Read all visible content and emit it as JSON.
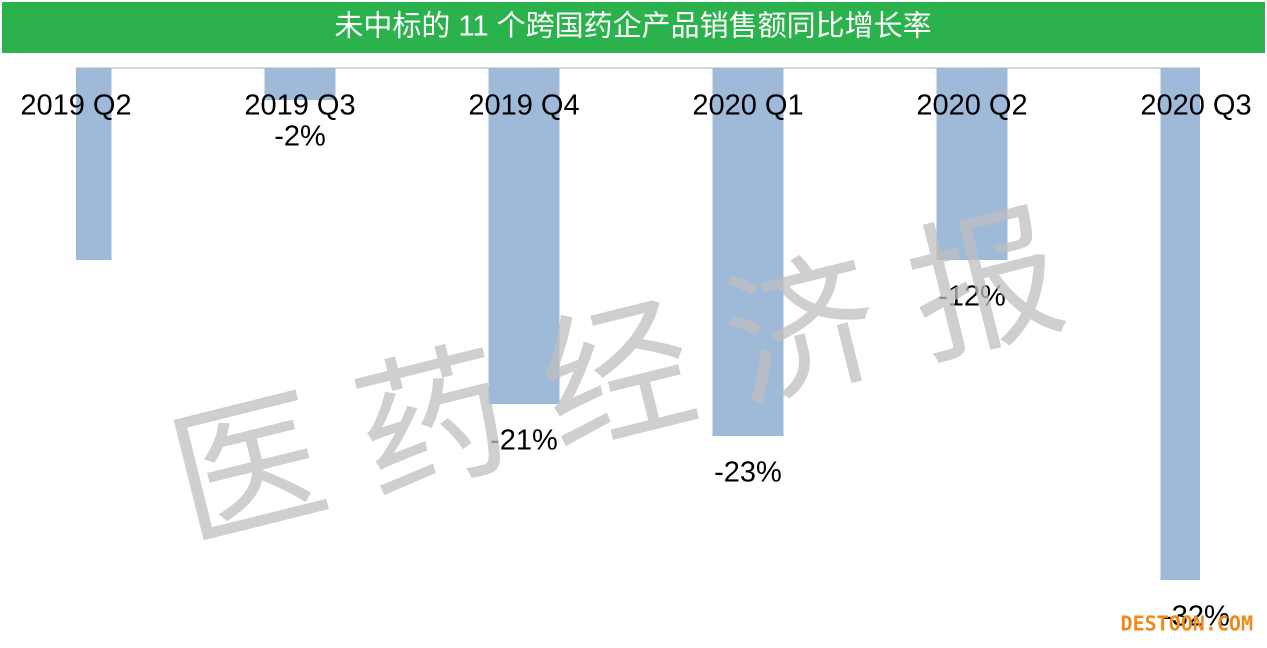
{
  "chart_data": {
    "type": "bar",
    "title": "未中标的 11 个跨国药企产品销售额同比增长率",
    "categories": [
      "2019 Q2",
      "2019 Q3",
      "2019 Q4",
      "2020 Q1",
      "2020 Q2",
      "2020 Q3"
    ],
    "values": [
      -12,
      -2,
      -21,
      -23,
      -12,
      -32
    ],
    "value_labels": [
      null,
      "-2%",
      "-21%",
      "-23%",
      "-12%",
      "-32%"
    ],
    "color": "#9fb9d9",
    "ylim": [
      -36,
      0
    ],
    "watermark": "医药经济报",
    "source_mark": "DESTOON.COM"
  }
}
